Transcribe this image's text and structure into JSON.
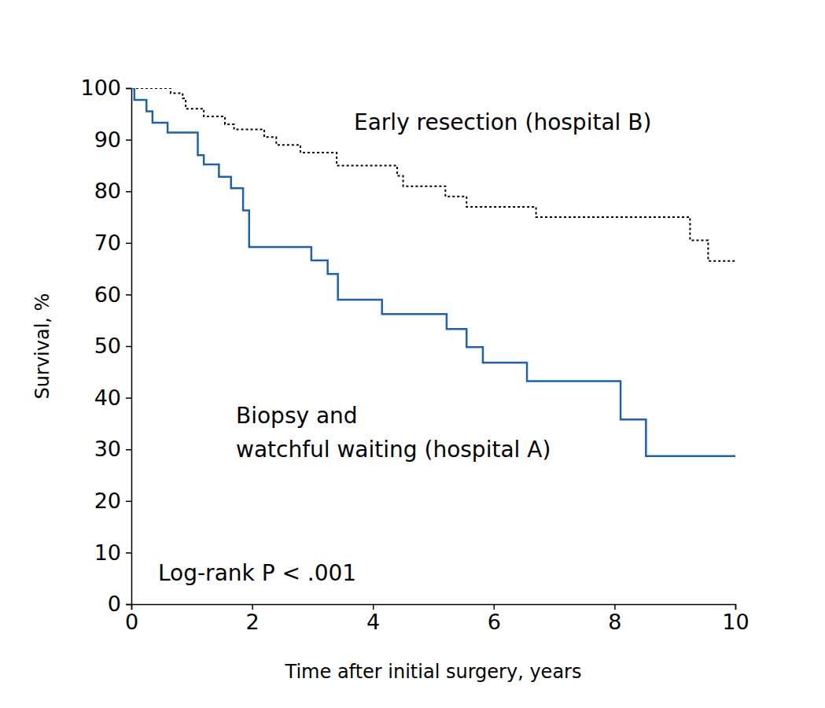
{
  "chart_data": {
    "type": "step",
    "x_label": "Time after initial surgery, years",
    "y_label": "Survival, %",
    "xlim": [
      0,
      10
    ],
    "xticks": [
      0,
      2,
      4,
      6,
      8,
      10
    ],
    "ylim": [
      0,
      100
    ],
    "yticks": [
      0,
      10,
      20,
      30,
      40,
      50,
      60,
      70,
      80,
      90,
      100
    ],
    "grid": false,
    "series": [
      {
        "name": "Early resection (hospital B)",
        "color": "#000000",
        "line_style": "dotted",
        "x": [
          0,
          0.65,
          0.85,
          0.9,
          1.2,
          1.55,
          1.7,
          2.2,
          2.4,
          2.8,
          3.4,
          4.4,
          4.5,
          5.2,
          5.55,
          6.7,
          9.25,
          9.55,
          10
        ],
        "values": [
          100,
          99,
          98,
          96,
          94.5,
          93,
          92,
          90.5,
          89,
          87.5,
          85,
          83,
          81,
          79,
          77,
          75,
          70.5,
          66.5,
          66.5
        ]
      },
      {
        "name": "Biopsy and\nwatchful waiting (hospital A)",
        "color": "#1f62a6",
        "line_style": "solid",
        "x": [
          0,
          0.05,
          0.25,
          0.35,
          0.6,
          1.1,
          1.2,
          1.45,
          1.65,
          1.85,
          1.95,
          2.98,
          3.25,
          3.42,
          4.15,
          5.22,
          5.55,
          5.82,
          6.55,
          8.1,
          8.52,
          10
        ],
        "values": [
          100,
          97.7,
          95.5,
          93.3,
          91.4,
          87,
          85.2,
          82.8,
          80.6,
          76.3,
          69.2,
          66.6,
          64,
          59,
          56.2,
          53.3,
          49.8,
          46.8,
          43.2,
          35.8,
          28.7,
          28.7
        ]
      }
    ],
    "annotations": [
      "Log-rank P < .001"
    ]
  }
}
